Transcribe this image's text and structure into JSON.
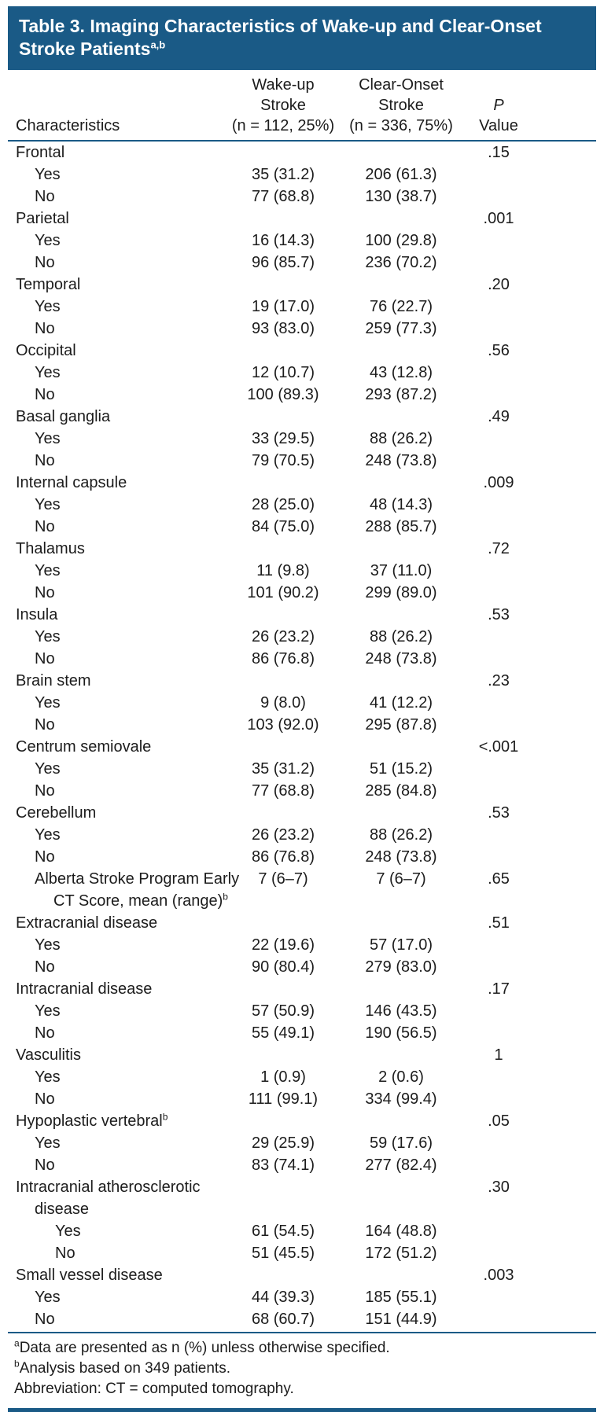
{
  "colors": {
    "accent_blue": "#1a5a86",
    "text": "#1c1c1c"
  },
  "title": {
    "text": "Table 3. Imaging Characteristics of Wake-up and Clear-Onset Stroke Patients",
    "sup": "a,b"
  },
  "header": {
    "characteristics_label": "Characteristics",
    "wakeup_col": {
      "line1": "Wake-up",
      "line2": "Stroke",
      "line3": "(n = 112, 25%)"
    },
    "clear_col": {
      "line1": "Clear-Onset",
      "line2": "Stroke",
      "line3": "(n = 336, 75%)"
    },
    "p_col": {
      "line1": "P",
      "line2": "Value"
    }
  },
  "rows": [
    {
      "label": "Frontal",
      "indent": 0,
      "wakeup": "",
      "clear": "",
      "p": ".15"
    },
    {
      "label": "Yes",
      "indent": 1,
      "wakeup": "35 (31.2)",
      "clear": "206 (61.3)",
      "p": ""
    },
    {
      "label": "No",
      "indent": 1,
      "wakeup": "77 (68.8)",
      "clear": "130 (38.7)",
      "p": ""
    },
    {
      "label": "Parietal",
      "indent": 0,
      "wakeup": "",
      "clear": "",
      "p": ".001"
    },
    {
      "label": "Yes",
      "indent": 1,
      "wakeup": "16 (14.3)",
      "clear": "100 (29.8)",
      "p": ""
    },
    {
      "label": "No",
      "indent": 1,
      "wakeup": "96 (85.7)",
      "clear": "236 (70.2)",
      "p": ""
    },
    {
      "label": "Temporal",
      "indent": 0,
      "wakeup": "",
      "clear": "",
      "p": ".20"
    },
    {
      "label": "Yes",
      "indent": 1,
      "wakeup": "19 (17.0)",
      "clear": "76 (22.7)",
      "p": ""
    },
    {
      "label": "No",
      "indent": 1,
      "wakeup": "93 (83.0)",
      "clear": "259 (77.3)",
      "p": ""
    },
    {
      "label": "Occipital",
      "indent": 0,
      "wakeup": "",
      "clear": "",
      "p": ".56"
    },
    {
      "label": "Yes",
      "indent": 1,
      "wakeup": "12 (10.7)",
      "clear": "43 (12.8)",
      "p": ""
    },
    {
      "label": "No",
      "indent": 1,
      "wakeup": "100 (89.3)",
      "clear": "293 (87.2)",
      "p": ""
    },
    {
      "label": "Basal ganglia",
      "indent": 0,
      "wakeup": "",
      "clear": "",
      "p": ".49"
    },
    {
      "label": "Yes",
      "indent": 1,
      "wakeup": "33 (29.5)",
      "clear": "88 (26.2)",
      "p": ""
    },
    {
      "label": "No",
      "indent": 1,
      "wakeup": "79 (70.5)",
      "clear": "248 (73.8)",
      "p": ""
    },
    {
      "label": "Internal capsule",
      "indent": 0,
      "wakeup": "",
      "clear": "",
      "p": ".009"
    },
    {
      "label": "Yes",
      "indent": 1,
      "wakeup": "28 (25.0)",
      "clear": "48 (14.3)",
      "p": ""
    },
    {
      "label": "No",
      "indent": 1,
      "wakeup": "84 (75.0)",
      "clear": "288 (85.7)",
      "p": ""
    },
    {
      "label": "Thalamus",
      "indent": 0,
      "wakeup": "",
      "clear": "",
      "p": ".72"
    },
    {
      "label": "Yes",
      "indent": 1,
      "wakeup": "11 (9.8)",
      "clear": "37 (11.0)",
      "p": ""
    },
    {
      "label": "No",
      "indent": 1,
      "wakeup": "101 (90.2)",
      "clear": "299 (89.0)",
      "p": ""
    },
    {
      "label": "Insula",
      "indent": 0,
      "wakeup": "",
      "clear": "",
      "p": ".53"
    },
    {
      "label": "Yes",
      "indent": 1,
      "wakeup": "26 (23.2)",
      "clear": "88 (26.2)",
      "p": ""
    },
    {
      "label": "No",
      "indent": 1,
      "wakeup": "86 (76.8)",
      "clear": "248 (73.8)",
      "p": ""
    },
    {
      "label": "Brain stem",
      "indent": 0,
      "wakeup": "",
      "clear": "",
      "p": ".23"
    },
    {
      "label": "Yes",
      "indent": 1,
      "wakeup": "9 (8.0)",
      "clear": "41 (12.2)",
      "p": ""
    },
    {
      "label": "No",
      "indent": 1,
      "wakeup": "103 (92.0)",
      "clear": "295 (87.8)",
      "p": ""
    },
    {
      "label": "Centrum semiovale",
      "indent": 0,
      "wakeup": "",
      "clear": "",
      "p": "<.001"
    },
    {
      "label": "Yes",
      "indent": 1,
      "wakeup": "35 (31.2)",
      "clear": "51 (15.2)",
      "p": ""
    },
    {
      "label": "No",
      "indent": 1,
      "wakeup": "77 (68.8)",
      "clear": "285 (84.8)",
      "p": ""
    },
    {
      "label": "Cerebellum",
      "indent": 0,
      "wakeup": "",
      "clear": "",
      "p": ".53"
    },
    {
      "label": "Yes",
      "indent": 1,
      "wakeup": "26 (23.2)",
      "clear": "88 (26.2)",
      "p": ""
    },
    {
      "label": "No",
      "indent": 1,
      "wakeup": "86 (76.8)",
      "clear": "248 (73.8)",
      "p": ""
    },
    {
      "label": "Alberta Stroke Program Early",
      "label2": "CT Score, mean (range)",
      "sup2": "b",
      "indent": 1,
      "wakeup": "7 (6–7)",
      "clear": "7 (6–7)",
      "p": ".65"
    },
    {
      "label": "Extracranial disease",
      "indent": 0,
      "wakeup": "",
      "clear": "",
      "p": ".51"
    },
    {
      "label": "Yes",
      "indent": 1,
      "wakeup": "22 (19.6)",
      "clear": "57 (17.0)",
      "p": ""
    },
    {
      "label": "No",
      "indent": 1,
      "wakeup": "90 (80.4)",
      "clear": "279 (83.0)",
      "p": ""
    },
    {
      "label": "Intracranial disease",
      "indent": 0,
      "wakeup": "",
      "clear": "",
      "p": ".17"
    },
    {
      "label": "Yes",
      "indent": 1,
      "wakeup": "57 (50.9)",
      "clear": "146 (43.5)",
      "p": ""
    },
    {
      "label": "No",
      "indent": 1,
      "wakeup": "55 (49.1)",
      "clear": "190 (56.5)",
      "p": ""
    },
    {
      "label": "Vasculitis",
      "indent": 0,
      "wakeup": "",
      "clear": "",
      "p": "1"
    },
    {
      "label": "Yes",
      "indent": 1,
      "wakeup": "1 (0.9)",
      "clear": "2 (0.6)",
      "p": ""
    },
    {
      "label": "No",
      "indent": 1,
      "wakeup": "111 (99.1)",
      "clear": "334 (99.4)",
      "p": ""
    },
    {
      "label": "Hypoplastic vertebral",
      "sup": "b",
      "indent": 0,
      "wakeup": "",
      "clear": "",
      "p": ".05"
    },
    {
      "label": "Yes",
      "indent": 1,
      "wakeup": "29 (25.9)",
      "clear": "59 (17.6)",
      "p": ""
    },
    {
      "label": "No",
      "indent": 1,
      "wakeup": "83 (74.1)",
      "clear": "277 (82.4)",
      "p": ""
    },
    {
      "label": "Intracranial atherosclerotic",
      "label2": "disease",
      "indent": 0,
      "wakeup": "",
      "clear": "",
      "p": ".30"
    },
    {
      "label": "Yes",
      "indent": 2,
      "wakeup": "61 (54.5)",
      "clear": "164 (48.8)",
      "p": ""
    },
    {
      "label": "No",
      "indent": 2,
      "wakeup": "51 (45.5)",
      "clear": "172 (51.2)",
      "p": ""
    },
    {
      "label": "Small vessel disease",
      "indent": 0,
      "wakeup": "",
      "clear": "",
      "p": ".003"
    },
    {
      "label": "Yes",
      "indent": 1,
      "wakeup": "44 (39.3)",
      "clear": "185 (55.1)",
      "p": ""
    },
    {
      "label": "No",
      "indent": 1,
      "wakeup": "68 (60.7)",
      "clear": "151 (44.9)",
      "p": ""
    }
  ],
  "footnotes": [
    {
      "marker": "a",
      "text": "Data are presented as n (%) unless otherwise specified."
    },
    {
      "marker": "b",
      "text": "Analysis based on 349 patients."
    },
    {
      "marker": "",
      "text": "Abbreviation: CT = computed tomography."
    }
  ]
}
